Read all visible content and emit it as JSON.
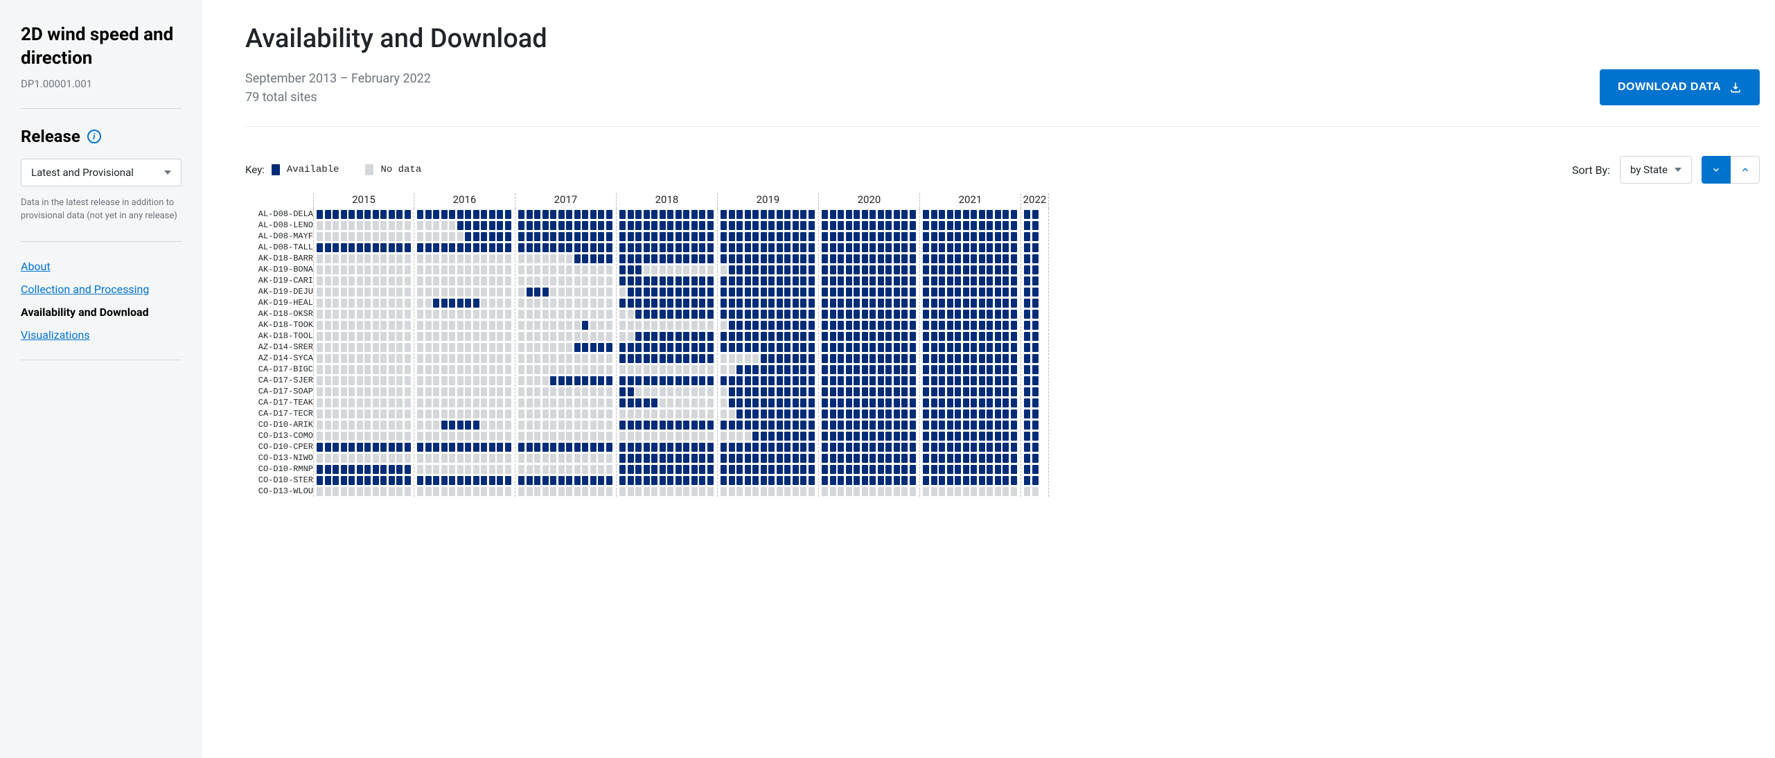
{
  "sidebar": {
    "title": "2D wind speed and direction",
    "product_id": "DP1.00001.001",
    "release_label": "Release",
    "release_select": "Latest and Provisional",
    "release_help": "Data in the latest release in addition to provisional data (not yet in any release)",
    "nav": [
      {
        "label": "About",
        "active": false
      },
      {
        "label": "Collection and Processing",
        "active": false
      },
      {
        "label": "Availability and Download",
        "active": true
      },
      {
        "label": "Visualizations",
        "active": false
      }
    ]
  },
  "header": {
    "title": "Availability and Download",
    "date_range": "September 2013 – February 2022",
    "sites_line": "79 total sites",
    "download_label": "DOWNLOAD DATA"
  },
  "key": {
    "prefix": "Key:",
    "available": "Available",
    "nodata": "No data",
    "available_color": "#002c77",
    "nodata_color": "#d5d8db"
  },
  "sort": {
    "label": "Sort By:",
    "value": "by State"
  },
  "colors": {
    "primary": "#0073cf",
    "cell_on": "#002c77",
    "cell_off": "#d5d8db"
  },
  "chart": {
    "type": "heatmap",
    "years": [
      2015,
      2016,
      2017,
      2018,
      2019,
      2020,
      2021,
      2022
    ],
    "months_per_year": 12,
    "last_year_months": 2,
    "rows": [
      {
        "label": "AL-D08-DELA",
        "start": 0
      },
      {
        "label": "AL-D08-LENO",
        "start": 17
      },
      {
        "label": "AL-D08-MAYF",
        "start": 18
      },
      {
        "label": "AL-D08-TALL",
        "start": 0
      },
      {
        "label": "AK-D18-BARR",
        "start": 31
      },
      {
        "label": "AK-D19-BONA",
        "start": 36,
        "gap_start": 39,
        "gap_end": 49
      },
      {
        "label": "AK-D19-CARI",
        "start": 36
      },
      {
        "label": "AK-D19-DEJU",
        "start": 25,
        "gap_start": 28,
        "gap_end": 37
      },
      {
        "label": "AK-D19-HEAL",
        "start": 14,
        "gap_start": 20,
        "gap_end": 36
      },
      {
        "label": "AK-D18-OKSR",
        "start": 38
      },
      {
        "label": "AK-D18-TOOK",
        "start": 32,
        "gap_start": 33,
        "gap_end": 49
      },
      {
        "label": "AK-D18-TOOL",
        "start": 38
      },
      {
        "label": "AZ-D14-SRER",
        "start": 31
      },
      {
        "label": "AZ-D14-SYCA",
        "start": 36,
        "gap_start": 48,
        "gap_end": 53
      },
      {
        "label": "CA-D17-BIGC",
        "start": 50
      },
      {
        "label": "CA-D17-SJER",
        "start": 28
      },
      {
        "label": "CA-D17-SOAP",
        "start": 36,
        "gap_start": 38,
        "gap_end": 49
      },
      {
        "label": "CA-D17-TEAK",
        "start": 36,
        "gap_start": 41,
        "gap_end": 49
      },
      {
        "label": "CA-D17-TECR",
        "start": 50
      },
      {
        "label": "CO-D10-ARIK",
        "start": 15,
        "gap_start": 20,
        "gap_end": 36
      },
      {
        "label": "CO-D13-COMO",
        "start": 52
      },
      {
        "label": "CO-D10-CPER",
        "start": 0
      },
      {
        "label": "CO-D13-NIWO",
        "start": 36
      },
      {
        "label": "CO-D10-RMNP",
        "start": 0,
        "gap_start": 12,
        "gap_end": 36
      },
      {
        "label": "CO-D10-STER",
        "start": 0
      },
      {
        "label": "CO-D13-WLOU",
        "start": 99
      }
    ]
  }
}
